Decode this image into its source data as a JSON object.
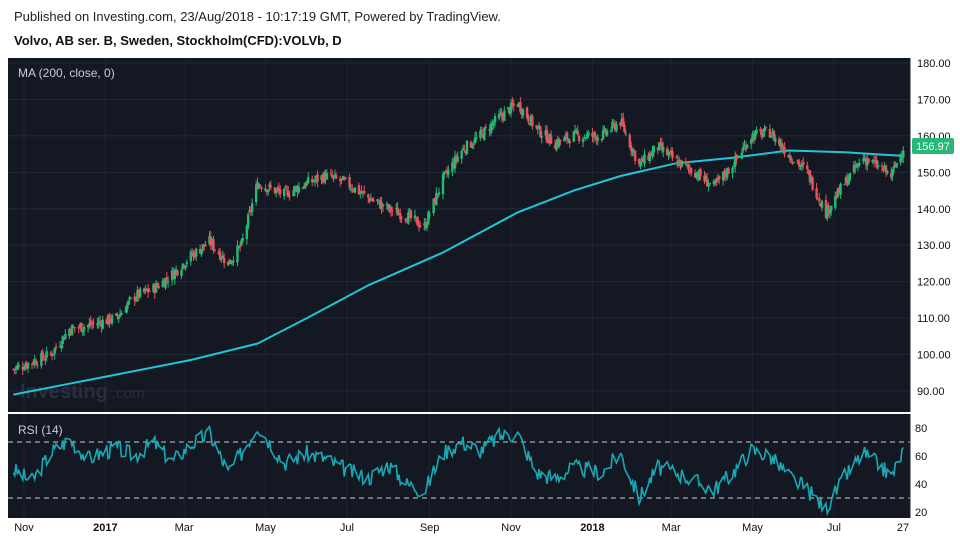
{
  "header": {
    "published": "Published on Investing.com, 23/Aug/2018 - 10:17:19 GMT, Powered by TradingView.",
    "instrument": "Volvo, AB ser. B, Sweden, Stockholm(CFD):VOLVb, D"
  },
  "colors": {
    "background": "#141823",
    "up": "#26b874",
    "down": "#e9525c",
    "ma": "#22c4d8",
    "rsi": "#19a9b5",
    "last_price_tag": "#26b874"
  },
  "watermark": {
    "text": "Investing",
    "suffix": ".com"
  },
  "chart_data": [
    {
      "type": "candlestick",
      "label": "MA (200, close, 0)",
      "y_ticks": [
        "180.00",
        "170.00",
        "160.00",
        "150.00",
        "140.00",
        "130.00",
        "120.00",
        "110.00",
        "100.00",
        "90.00"
      ],
      "ylim": [
        85,
        180
      ],
      "last_price": "156.97",
      "x_ticks": [
        "Nov",
        "2017",
        "Mar",
        "May",
        "Jul",
        "Sep",
        "Nov",
        "2018",
        "Mar",
        "May",
        "Jul",
        "27"
      ],
      "series": [
        {
          "name": "Close",
          "points": [
            [
              "2016-10-24",
              96
            ],
            [
              "2016-11-07",
              98
            ],
            [
              "2016-11-21",
              100
            ],
            [
              "2016-12-05",
              107
            ],
            [
              "2016-12-19",
              108
            ],
            [
              "2017-01-09",
              110
            ],
            [
              "2017-01-23",
              116
            ],
            [
              "2017-02-06",
              118
            ],
            [
              "2017-02-20",
              122
            ],
            [
              "2017-03-06",
              127
            ],
            [
              "2017-03-20",
              131
            ],
            [
              "2017-04-03",
              125
            ],
            [
              "2017-04-13",
              130
            ],
            [
              "2017-04-25",
              147
            ],
            [
              "2017-05-15",
              144
            ],
            [
              "2017-06-01",
              147
            ],
            [
              "2017-06-15",
              149
            ],
            [
              "2017-07-01",
              147
            ],
            [
              "2017-07-17",
              143
            ],
            [
              "2017-08-01",
              140
            ],
            [
              "2017-08-15",
              138
            ],
            [
              "2017-08-28",
              135
            ],
            [
              "2017-09-11",
              148
            ],
            [
              "2017-09-25",
              156
            ],
            [
              "2017-10-09",
              160
            ],
            [
              "2017-10-23",
              165
            ],
            [
              "2017-11-06",
              169
            ],
            [
              "2017-11-20",
              162
            ],
            [
              "2017-12-04",
              158
            ],
            [
              "2017-12-18",
              160
            ],
            [
              "2018-01-08",
              160
            ],
            [
              "2018-01-22",
              164
            ],
            [
              "2018-02-05",
              152
            ],
            [
              "2018-02-19",
              157
            ],
            [
              "2018-03-05",
              153
            ],
            [
              "2018-03-19",
              150
            ],
            [
              "2018-04-02",
              146
            ],
            [
              "2018-04-16",
              152
            ],
            [
              "2018-04-30",
              160
            ],
            [
              "2018-05-14",
              161
            ],
            [
              "2018-05-28",
              155
            ],
            [
              "2018-06-11",
              150
            ],
            [
              "2018-06-25",
              139
            ],
            [
              "2018-07-09",
              147
            ],
            [
              "2018-07-23",
              154
            ],
            [
              "2018-08-06",
              151
            ],
            [
              "2018-08-13",
              149
            ],
            [
              "2018-08-22",
              156.97
            ]
          ]
        },
        {
          "name": "MA (200, close, 0)",
          "points": [
            [
              "2016-10-24",
              89
            ],
            [
              "2016-12-05",
              92
            ],
            [
              "2017-01-09",
              94.5
            ],
            [
              "2017-03-06",
              98.5
            ],
            [
              "2017-04-25",
              103
            ],
            [
              "2017-06-01",
              110
            ],
            [
              "2017-07-17",
              119
            ],
            [
              "2017-09-11",
              128
            ],
            [
              "2017-11-06",
              139
            ],
            [
              "2017-12-18",
              145
            ],
            [
              "2018-01-22",
              149
            ],
            [
              "2018-03-05",
              152.5
            ],
            [
              "2018-04-16",
              154
            ],
            [
              "2018-05-28",
              156
            ],
            [
              "2018-07-09",
              155.5
            ],
            [
              "2018-08-22",
              154.5
            ]
          ]
        }
      ]
    },
    {
      "type": "line",
      "label": "RSI (14)",
      "y_ticks": [
        "80",
        "60",
        "40",
        "20"
      ],
      "ylim": [
        20,
        85
      ],
      "bands": [
        70,
        30
      ],
      "series": [
        {
          "name": "RSI (14)",
          "points": [
            [
              "2016-10-24",
              50
            ],
            [
              "2016-11-07",
              42
            ],
            [
              "2016-11-21",
              62
            ],
            [
              "2016-12-05",
              72
            ],
            [
              "2016-12-19",
              58
            ],
            [
              "2017-01-09",
              66
            ],
            [
              "2017-01-23",
              60
            ],
            [
              "2017-02-06",
              70
            ],
            [
              "2017-02-20",
              56
            ],
            [
              "2017-03-06",
              68
            ],
            [
              "2017-03-20",
              76
            ],
            [
              "2017-04-03",
              48
            ],
            [
              "2017-04-13",
              62
            ],
            [
              "2017-04-25",
              82
            ],
            [
              "2017-05-15",
              55
            ],
            [
              "2017-06-01",
              62
            ],
            [
              "2017-06-15",
              58
            ],
            [
              "2017-07-01",
              50
            ],
            [
              "2017-07-17",
              44
            ],
            [
              "2017-08-01",
              54
            ],
            [
              "2017-08-15",
              40
            ],
            [
              "2017-08-28",
              35
            ],
            [
              "2017-09-11",
              62
            ],
            [
              "2017-09-25",
              70
            ],
            [
              "2017-10-09",
              64
            ],
            [
              "2017-10-23",
              74
            ],
            [
              "2017-11-06",
              76
            ],
            [
              "2017-11-20",
              48
            ],
            [
              "2017-12-04",
              44
            ],
            [
              "2017-12-18",
              52
            ],
            [
              "2018-01-08",
              48
            ],
            [
              "2018-01-22",
              62
            ],
            [
              "2018-02-05",
              30
            ],
            [
              "2018-02-19",
              52
            ],
            [
              "2018-03-05",
              48
            ],
            [
              "2018-03-19",
              42
            ],
            [
              "2018-04-02",
              36
            ],
            [
              "2018-04-16",
              48
            ],
            [
              "2018-04-30",
              64
            ],
            [
              "2018-05-14",
              60
            ],
            [
              "2018-05-28",
              46
            ],
            [
              "2018-06-11",
              36
            ],
            [
              "2018-06-25",
              22
            ],
            [
              "2018-07-09",
              45
            ],
            [
              "2018-07-23",
              62
            ],
            [
              "2018-08-06",
              52
            ],
            [
              "2018-08-13",
              45
            ],
            [
              "2018-08-22",
              64
            ]
          ]
        }
      ]
    }
  ]
}
